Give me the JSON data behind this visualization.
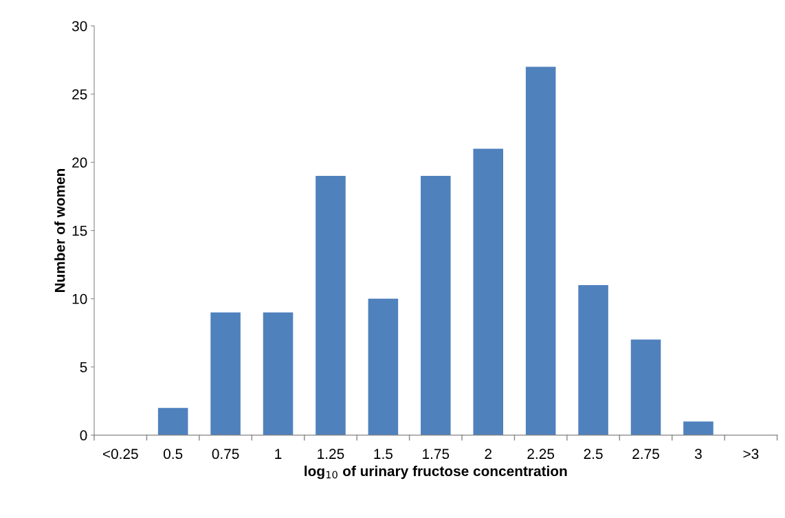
{
  "chart_data": {
    "type": "bar",
    "categories": [
      "<0.25",
      "0.5",
      "0.75",
      "1",
      "1.25",
      "1.5",
      "1.75",
      "2",
      "2.25",
      "2.5",
      "2.75",
      "3",
      ">3"
    ],
    "values": [
      0,
      2,
      9,
      9,
      19,
      10,
      19,
      21,
      27,
      11,
      7,
      1,
      0
    ],
    "color": "#4f81bd",
    "xlabel": "log$_{10}$ of urinary fructose concentration",
    "ylabel": "Number of women",
    "ylim": [
      0,
      30
    ],
    "yticks": [
      0,
      5,
      10,
      15,
      20,
      25,
      30
    ],
    "grid": false,
    "legend": false
  }
}
